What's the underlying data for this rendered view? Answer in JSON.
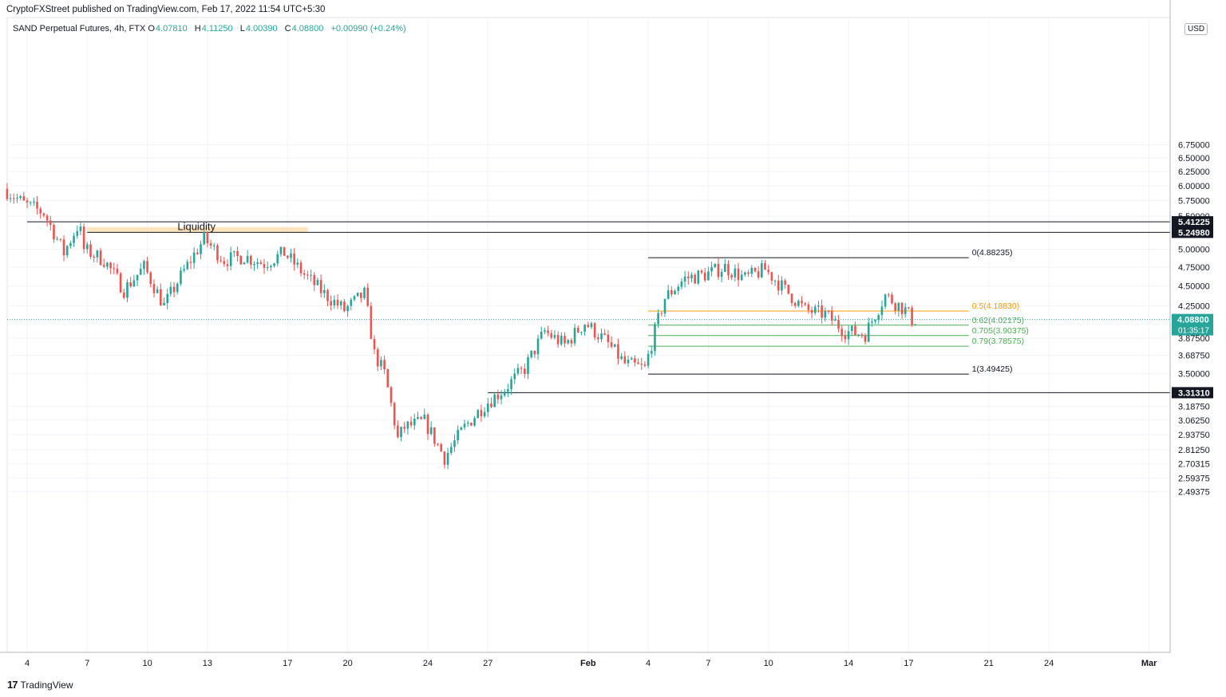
{
  "header": {
    "text": "CryptoFXStreet published on TradingView.com, Feb 17, 2022 11:54 UTC+5:30"
  },
  "legend": {
    "symbol": "SAND Perpetual Futures, 4h, FTX",
    "o_label": "O",
    "o_value": "4.07810",
    "h_label": "H",
    "h_value": "4.11250",
    "l_label": "L",
    "l_value": "4.00390",
    "c_label": "C",
    "c_value": "4.08800",
    "change": "+0.00990 (+0.24%)"
  },
  "currency": "USD",
  "footer": {
    "brand": "TradingView",
    "logo": "17"
  },
  "colors": {
    "up": "#26a69a",
    "down": "#ef5350",
    "fib_orange": "#ff9800",
    "fib_green": "#4caf50",
    "liquidity": "#ffe0b2"
  },
  "chart_data": {
    "type": "candlestick",
    "title": "SAND Perpetual Futures, 4h, FTX",
    "y_scale": "log",
    "y_axis_ticks": [
      "6.75000",
      "6.50000",
      "6.25000",
      "6.00000",
      "5.75000",
      "5.50000",
      "5.00000",
      "4.75000",
      "4.50000",
      "4.25000",
      "3.87500",
      "3.68750",
      "3.50000",
      "3.18750",
      "3.06250",
      "2.93750",
      "2.81250",
      "2.70315",
      "2.59375",
      "2.49375"
    ],
    "x_axis_ticks": [
      {
        "label": "4",
        "date": "2022-01-04"
      },
      {
        "label": "7",
        "date": "2022-01-07"
      },
      {
        "label": "10",
        "date": "2022-01-10"
      },
      {
        "label": "13",
        "date": "2022-01-13"
      },
      {
        "label": "17",
        "date": "2022-01-17"
      },
      {
        "label": "20",
        "date": "2022-01-20"
      },
      {
        "label": "24",
        "date": "2022-01-24"
      },
      {
        "label": "27",
        "date": "2022-01-27"
      },
      {
        "label": "Feb",
        "date": "2022-02-01"
      },
      {
        "label": "4",
        "date": "2022-02-04"
      },
      {
        "label": "7",
        "date": "2022-02-07"
      },
      {
        "label": "10",
        "date": "2022-02-10"
      },
      {
        "label": "14",
        "date": "2022-02-14"
      },
      {
        "label": "17",
        "date": "2022-02-17"
      },
      {
        "label": "21",
        "date": "2022-02-21"
      },
      {
        "label": "24",
        "date": "2022-02-24"
      },
      {
        "label": "Mar",
        "date": "2022-03-01"
      }
    ],
    "horizontal_levels": [
      {
        "label": "5.41225",
        "value": 5.41225,
        "start": "2022-01-04"
      },
      {
        "label": "5.24980",
        "value": 5.2498,
        "start": "2022-01-07"
      },
      {
        "label": "3.31310",
        "value": 3.3131,
        "start": "2022-01-27"
      }
    ],
    "liquidity_zone": {
      "label": "Liquidity",
      "from_value": 5.2498,
      "to_value": 5.33,
      "start": "2022-01-07",
      "end": "2022-01-18"
    },
    "fibonacci": [
      {
        "label": "0(4.88235)",
        "value": 4.88235,
        "color": "#131722"
      },
      {
        "label": "0.5(4.18830)",
        "value": 4.1883,
        "color": "#ff9800"
      },
      {
        "label": "0.62(4.02175)",
        "value": 4.02175,
        "color": "#4caf50"
      },
      {
        "label": "0.705(3.90375)",
        "value": 3.90375,
        "color": "#4caf50"
      },
      {
        "label": "0.79(3.78575)",
        "value": 3.78575,
        "color": "#4caf50"
      },
      {
        "label": "1(3.49425)",
        "value": 3.49425,
        "color": "#131722"
      }
    ],
    "fib_range": {
      "start": "2022-02-04",
      "end": "2022-02-20"
    },
    "current_price": {
      "label": "4.08800",
      "value": 4.088,
      "countdown": "01:35:17"
    },
    "anchors": [
      {
        "date": "2022-01-03",
        "price": 5.95
      },
      {
        "date": "2022-01-04",
        "price": 5.7
      },
      {
        "date": "2022-01-05",
        "price": 5.55
      },
      {
        "date": "2022-01-06",
        "price": 4.95
      },
      {
        "date": "2022-01-06T18",
        "price": 5.38
      },
      {
        "date": "2022-01-07",
        "price": 5.0
      },
      {
        "date": "2022-01-08",
        "price": 4.85
      },
      {
        "date": "2022-01-09",
        "price": 4.45
      },
      {
        "date": "2022-01-10",
        "price": 4.75
      },
      {
        "date": "2022-01-11",
        "price": 4.25
      },
      {
        "date": "2022-01-12",
        "price": 4.7
      },
      {
        "date": "2022-01-13",
        "price": 5.15
      },
      {
        "date": "2022-01-14",
        "price": 4.85
      },
      {
        "date": "2022-01-15",
        "price": 4.9
      },
      {
        "date": "2022-01-16",
        "price": 4.8
      },
      {
        "date": "2022-01-17",
        "price": 4.95
      },
      {
        "date": "2022-01-18",
        "price": 4.65
      },
      {
        "date": "2022-01-19",
        "price": 4.4
      },
      {
        "date": "2022-01-20",
        "price": 4.2
      },
      {
        "date": "2022-01-21",
        "price": 4.4
      },
      {
        "date": "2022-01-21T12",
        "price": 3.7
      },
      {
        "date": "2022-01-22",
        "price": 3.5
      },
      {
        "date": "2022-01-22T16",
        "price": 2.9
      },
      {
        "date": "2022-01-23",
        "price": 3.0
      },
      {
        "date": "2022-01-24",
        "price": 3.05
      },
      {
        "date": "2022-01-25",
        "price": 2.75
      },
      {
        "date": "2022-01-26",
        "price": 3.0
      },
      {
        "date": "2022-01-27",
        "price": 3.2
      },
      {
        "date": "2022-01-28",
        "price": 3.35
      },
      {
        "date": "2022-01-29",
        "price": 3.55
      },
      {
        "date": "2022-01-30",
        "price": 3.95
      },
      {
        "date": "2022-01-31",
        "price": 3.8
      },
      {
        "date": "2022-02-01",
        "price": 4.05
      },
      {
        "date": "2022-02-02",
        "price": 3.85
      },
      {
        "date": "2022-02-03",
        "price": 3.6
      },
      {
        "date": "2022-02-04",
        "price": 3.55
      },
      {
        "date": "2022-02-05",
        "price": 4.35
      },
      {
        "date": "2022-02-06",
        "price": 4.6
      },
      {
        "date": "2022-02-07",
        "price": 4.65
      },
      {
        "date": "2022-02-08",
        "price": 4.75
      },
      {
        "date": "2022-02-09",
        "price": 4.6
      },
      {
        "date": "2022-02-10",
        "price": 4.72
      },
      {
        "date": "2022-02-11",
        "price": 4.45
      },
      {
        "date": "2022-02-12",
        "price": 4.2
      },
      {
        "date": "2022-02-13",
        "price": 4.15
      },
      {
        "date": "2022-02-14",
        "price": 3.95
      },
      {
        "date": "2022-02-15",
        "price": 3.92
      },
      {
        "date": "2022-02-16",
        "price": 4.38
      },
      {
        "date": "2022-02-17",
        "price": 4.2
      },
      {
        "date": "2022-02-17T08",
        "price": 4.088
      }
    ],
    "xlim": [
      "2022-01-03",
      "2022-03-02"
    ],
    "ylim": [
      2.46,
      7.05
    ],
    "grid": true
  }
}
